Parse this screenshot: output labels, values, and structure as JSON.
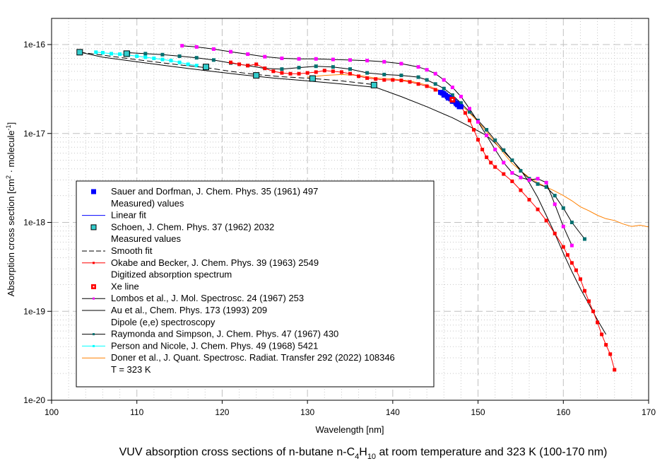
{
  "chart_data": {
    "type": "line",
    "title": "VUV absorption cross sections of n-butane n-C4H10 at room temperature and 323 K (100-170 nm)",
    "title_parts": {
      "pre": "VUV absorption cross sections of n-butane n-C",
      "sub1": "4",
      "mid": "H",
      "sub2": "10",
      "post": " at room temperature and 323 K (100-170 nm)"
    },
    "xlabel": "Wavelength [nm]",
    "ylabel": "Absorption cross section [cm2 · molecule-1]",
    "ylabel_parts": {
      "pre": "Absorption cross section [cm",
      "sup1": "2",
      "mid": " · molecule",
      "sup2": "-1",
      "post": "]"
    },
    "xlim": [
      100,
      170
    ],
    "ylim": [
      1e-20,
      2.5e-16
    ],
    "yscale": "log",
    "grid": true,
    "legend_position": "lower-left",
    "xticks": [
      "100",
      "110",
      "120",
      "130",
      "140",
      "150",
      "160",
      "170"
    ],
    "yticks": [
      "1e-16",
      "1e-17",
      "1e-18",
      "1e-19",
      "1e-20"
    ],
    "series": [
      {
        "name": "Sauer and Dorfman, J. Chem. Phys. 35 (1961) 497",
        "name2": "Measured) values",
        "color": "#0000ff",
        "style": "square-filled",
        "x": [
          145.6,
          145.8,
          146.0,
          146.2,
          146.4,
          146.6,
          146.8,
          147.0,
          147.2,
          147.4,
          147.6,
          147.8,
          146.0,
          146.5,
          147.0,
          147.5,
          148.0
        ],
        "y": [
          2.9e-17,
          2.85e-17,
          2.8e-17,
          2.7e-17,
          2.6e-17,
          2.55e-17,
          2.45e-17,
          2.35e-17,
          2.3e-17,
          2.2e-17,
          2.1e-17,
          2e-17,
          2.7e-17,
          2.5e-17,
          2.3e-17,
          2.15e-17,
          2e-17
        ]
      },
      {
        "name": "Linear fit",
        "color": "#0000ff",
        "style": "line",
        "x": [
          145.5,
          148.0
        ],
        "y": [
          2.95e-17,
          2e-17
        ]
      },
      {
        "name": "Schoen, J. Chem. Phys. 37 (1962) 2032",
        "name2": "Measured values",
        "color": "#33cccc",
        "style": "square-open",
        "x": [
          103.3,
          108.8,
          118.1,
          124.0,
          130.6,
          137.8
        ],
        "y": [
          8.2e-17,
          7.9e-17,
          5.6e-17,
          4.5e-17,
          4.15e-17,
          3.5e-17
        ]
      },
      {
        "name": "Smooth fit",
        "color": "#000000",
        "style": "dash",
        "x": [
          103.3,
          106,
          108.8,
          112,
          115,
          118.1,
          121,
          124,
          127,
          130.6,
          134,
          137.8
        ],
        "y": [
          8.2e-17,
          7.6e-17,
          7e-17,
          6.4e-17,
          5.9e-17,
          5.5e-17,
          5e-17,
          4.6e-17,
          4.35e-17,
          4.15e-17,
          3.9e-17,
          3.55e-17
        ]
      },
      {
        "name": "Okabe and Becker, J. Chem. Phys. 39 (1963) 2549",
        "name2": "Digitized absorption spectrum",
        "color": "#ff0000",
        "style": "line-dot",
        "x": [
          121,
          122,
          123,
          124,
          125,
          126,
          127,
          128,
          129,
          130,
          131,
          132,
          133,
          134,
          135,
          136,
          137,
          138,
          139,
          140,
          141,
          142,
          143,
          144,
          145,
          146,
          147,
          148,
          148.5,
          149,
          149.5,
          150,
          150.5,
          151,
          151.5,
          152,
          153,
          154,
          155,
          156,
          157,
          158,
          159,
          160,
          160.5,
          161,
          161.5,
          162,
          162.5,
          163,
          163.5,
          164,
          164.5,
          165,
          165.5,
          166
        ],
        "y": [
          6.3e-17,
          6e-17,
          5.8e-17,
          6e-17,
          5.4e-17,
          5e-17,
          4.8e-17,
          4.7e-17,
          4.7e-17,
          4.8e-17,
          4.9e-17,
          5.1e-17,
          5e-17,
          4.9e-17,
          4.7e-17,
          4.4e-17,
          4.2e-17,
          4.1e-17,
          4e-17,
          4e-17,
          3.95e-17,
          3.8e-17,
          3.6e-17,
          3.4e-17,
          3.1e-17,
          2.8e-17,
          2.4e-17,
          2e-17,
          1.7e-17,
          1.4e-17,
          1.1e-17,
          8.5e-18,
          6.6e-18,
          5.4e-18,
          4.7e-18,
          4.2e-18,
          3.5e-18,
          2.9e-18,
          2.3e-18,
          1.8e-18,
          1.4e-18,
          1.05e-18,
          7.5e-19,
          5.3e-19,
          4.3e-19,
          3.5e-19,
          2.9e-19,
          2.3e-19,
          1.7e-19,
          1.3e-19,
          1e-19,
          7.5e-20,
          5.5e-20,
          4.2e-20,
          3.3e-20,
          2.2e-20
        ]
      },
      {
        "name": "Xe line",
        "color": "#ff0000",
        "style": "square-red",
        "x": [
          147.0
        ],
        "y": [
          2.4e-17
        ]
      },
      {
        "name": "Lombos et al., J. Mol. Spectrosc. 24 (1967) 253",
        "color": "#ff00ff",
        "style": "line-dot",
        "x": [
          115.3,
          117,
          119,
          121,
          123,
          125,
          127,
          129,
          131,
          133,
          135,
          137,
          139,
          141,
          143,
          144,
          145,
          146,
          147,
          148,
          149,
          150,
          151,
          152,
          153,
          154,
          155,
          156,
          157,
          158,
          159,
          160,
          161
        ],
        "y": [
          9.7e-17,
          9.4e-17,
          8.9e-17,
          8.3e-17,
          7.8e-17,
          7.3e-17,
          7e-17,
          6.9e-17,
          6.9e-17,
          6.8e-17,
          6.7e-17,
          6.6e-17,
          6.4e-17,
          6.1e-17,
          5.6e-17,
          5.2e-17,
          4.7e-17,
          4e-17,
          3.3e-17,
          2.6e-17,
          1.9e-17,
          1.35e-17,
          9.5e-18,
          6.6e-18,
          4.7e-18,
          3.6e-18,
          3.2e-18,
          3e-18,
          3.1e-18,
          2.8e-18,
          1.6e-18,
          9e-19,
          5.5e-19
        ]
      },
      {
        "name": "Au et al., Chem. Phys. 173 (1993) 209",
        "name2": "Dipole (e,e) spectroscopy",
        "color": "#000000",
        "style": "line",
        "x": [
          103.3,
          106,
          110,
          114,
          118,
          122,
          126,
          130,
          134,
          138,
          141,
          144,
          147,
          149,
          151,
          152,
          153,
          154,
          155,
          156,
          157,
          158,
          159,
          160,
          161,
          162,
          163,
          164,
          165
        ],
        "y": [
          8.2e-17,
          7.2e-17,
          6.4e-17,
          5.7e-17,
          5.1e-17,
          4.6e-17,
          4.2e-17,
          3.9e-17,
          3.6e-17,
          3.3e-17,
          2.6e-17,
          2e-17,
          1.5e-17,
          1.2e-17,
          9.5e-18,
          7.8e-18,
          6.3e-18,
          5e-18,
          3.9e-18,
          2.8e-18,
          1.9e-18,
          1.2e-18,
          7.5e-19,
          4.5e-19,
          2.8e-19,
          1.8e-19,
          1.2e-19,
          8e-20,
          5.5e-20
        ]
      },
      {
        "name": "Raymonda and Simpson, J. Chem. Phys. 47 (1967) 430",
        "color": "#007070",
        "style": "line-dot",
        "x": [
          109,
          111,
          113,
          115,
          117,
          119,
          121,
          123,
          125,
          127,
          129,
          131,
          133,
          135,
          137,
          139,
          141,
          143,
          144,
          145,
          146,
          147,
          148,
          149,
          150,
          151,
          152,
          153,
          154,
          155,
          156,
          157,
          158,
          159,
          160,
          161,
          162.5
        ],
        "y": [
          8.1e-17,
          7.9e-17,
          7.7e-17,
          7.4e-17,
          7.1e-17,
          6.7e-17,
          6.2e-17,
          5.8e-17,
          5.4e-17,
          5.3e-17,
          5.5e-17,
          5.7e-17,
          5.6e-17,
          5.3e-17,
          4.8e-17,
          4.6e-17,
          4.5e-17,
          4.3e-17,
          4e-17,
          3.6e-17,
          3.2e-17,
          2.7e-17,
          2.2e-17,
          1.75e-17,
          1.4e-17,
          1.1e-17,
          8.4e-18,
          6.5e-18,
          5e-18,
          3.8e-18,
          3.1e-18,
          2.7e-18,
          2.5e-18,
          2e-18,
          1.45e-18,
          1e-18,
          6.5e-19
        ]
      },
      {
        "name": "Person and Nicole, J. Chem. Phys. 49 (1968) 5421",
        "color": "#00ffff",
        "style": "line-dot",
        "x": [
          105.2,
          106,
          107,
          108,
          109,
          110,
          111,
          112,
          113,
          114,
          115,
          116,
          117
        ],
        "y": [
          8.2e-17,
          8.1e-17,
          7.9e-17,
          7.8e-17,
          7.6e-17,
          7.4e-17,
          7.2e-17,
          7e-17,
          6.8e-17,
          6.6e-17,
          6.3e-17,
          6e-17,
          5.8e-17
        ]
      },
      {
        "name": "Doner et al., J. Quant. Spectrosc. Radiat. Transfer 292 (2022) 108346",
        "name2": "T = 323 K",
        "color": "#ff8000",
        "style": "line",
        "x": [
          130,
          132,
          134,
          136,
          138,
          140,
          142,
          144,
          145,
          146,
          147,
          148,
          149,
          150,
          151,
          152,
          153,
          154,
          155,
          156,
          157,
          158,
          159,
          160,
          161,
          162,
          163,
          164,
          165,
          166,
          167,
          168,
          169,
          170
        ],
        "y": [
          4.3e-17,
          4.5e-17,
          4.6e-17,
          4.5e-17,
          4.2e-17,
          4.1e-17,
          3.9e-17,
          3.5e-17,
          3.2e-17,
          2.9e-17,
          2.5e-17,
          2.1e-17,
          1.7e-17,
          1.35e-17,
          1.05e-17,
          8e-18,
          6e-18,
          4.6e-18,
          3.8e-18,
          3.2e-18,
          2.8e-18,
          2.5e-18,
          2.25e-18,
          2e-18,
          1.75e-18,
          1.5e-18,
          1.35e-18,
          1.2e-18,
          1.1e-18,
          1.05e-18,
          9.6e-19,
          9e-19,
          9.3e-19,
          8.9e-19
        ]
      }
    ]
  }
}
